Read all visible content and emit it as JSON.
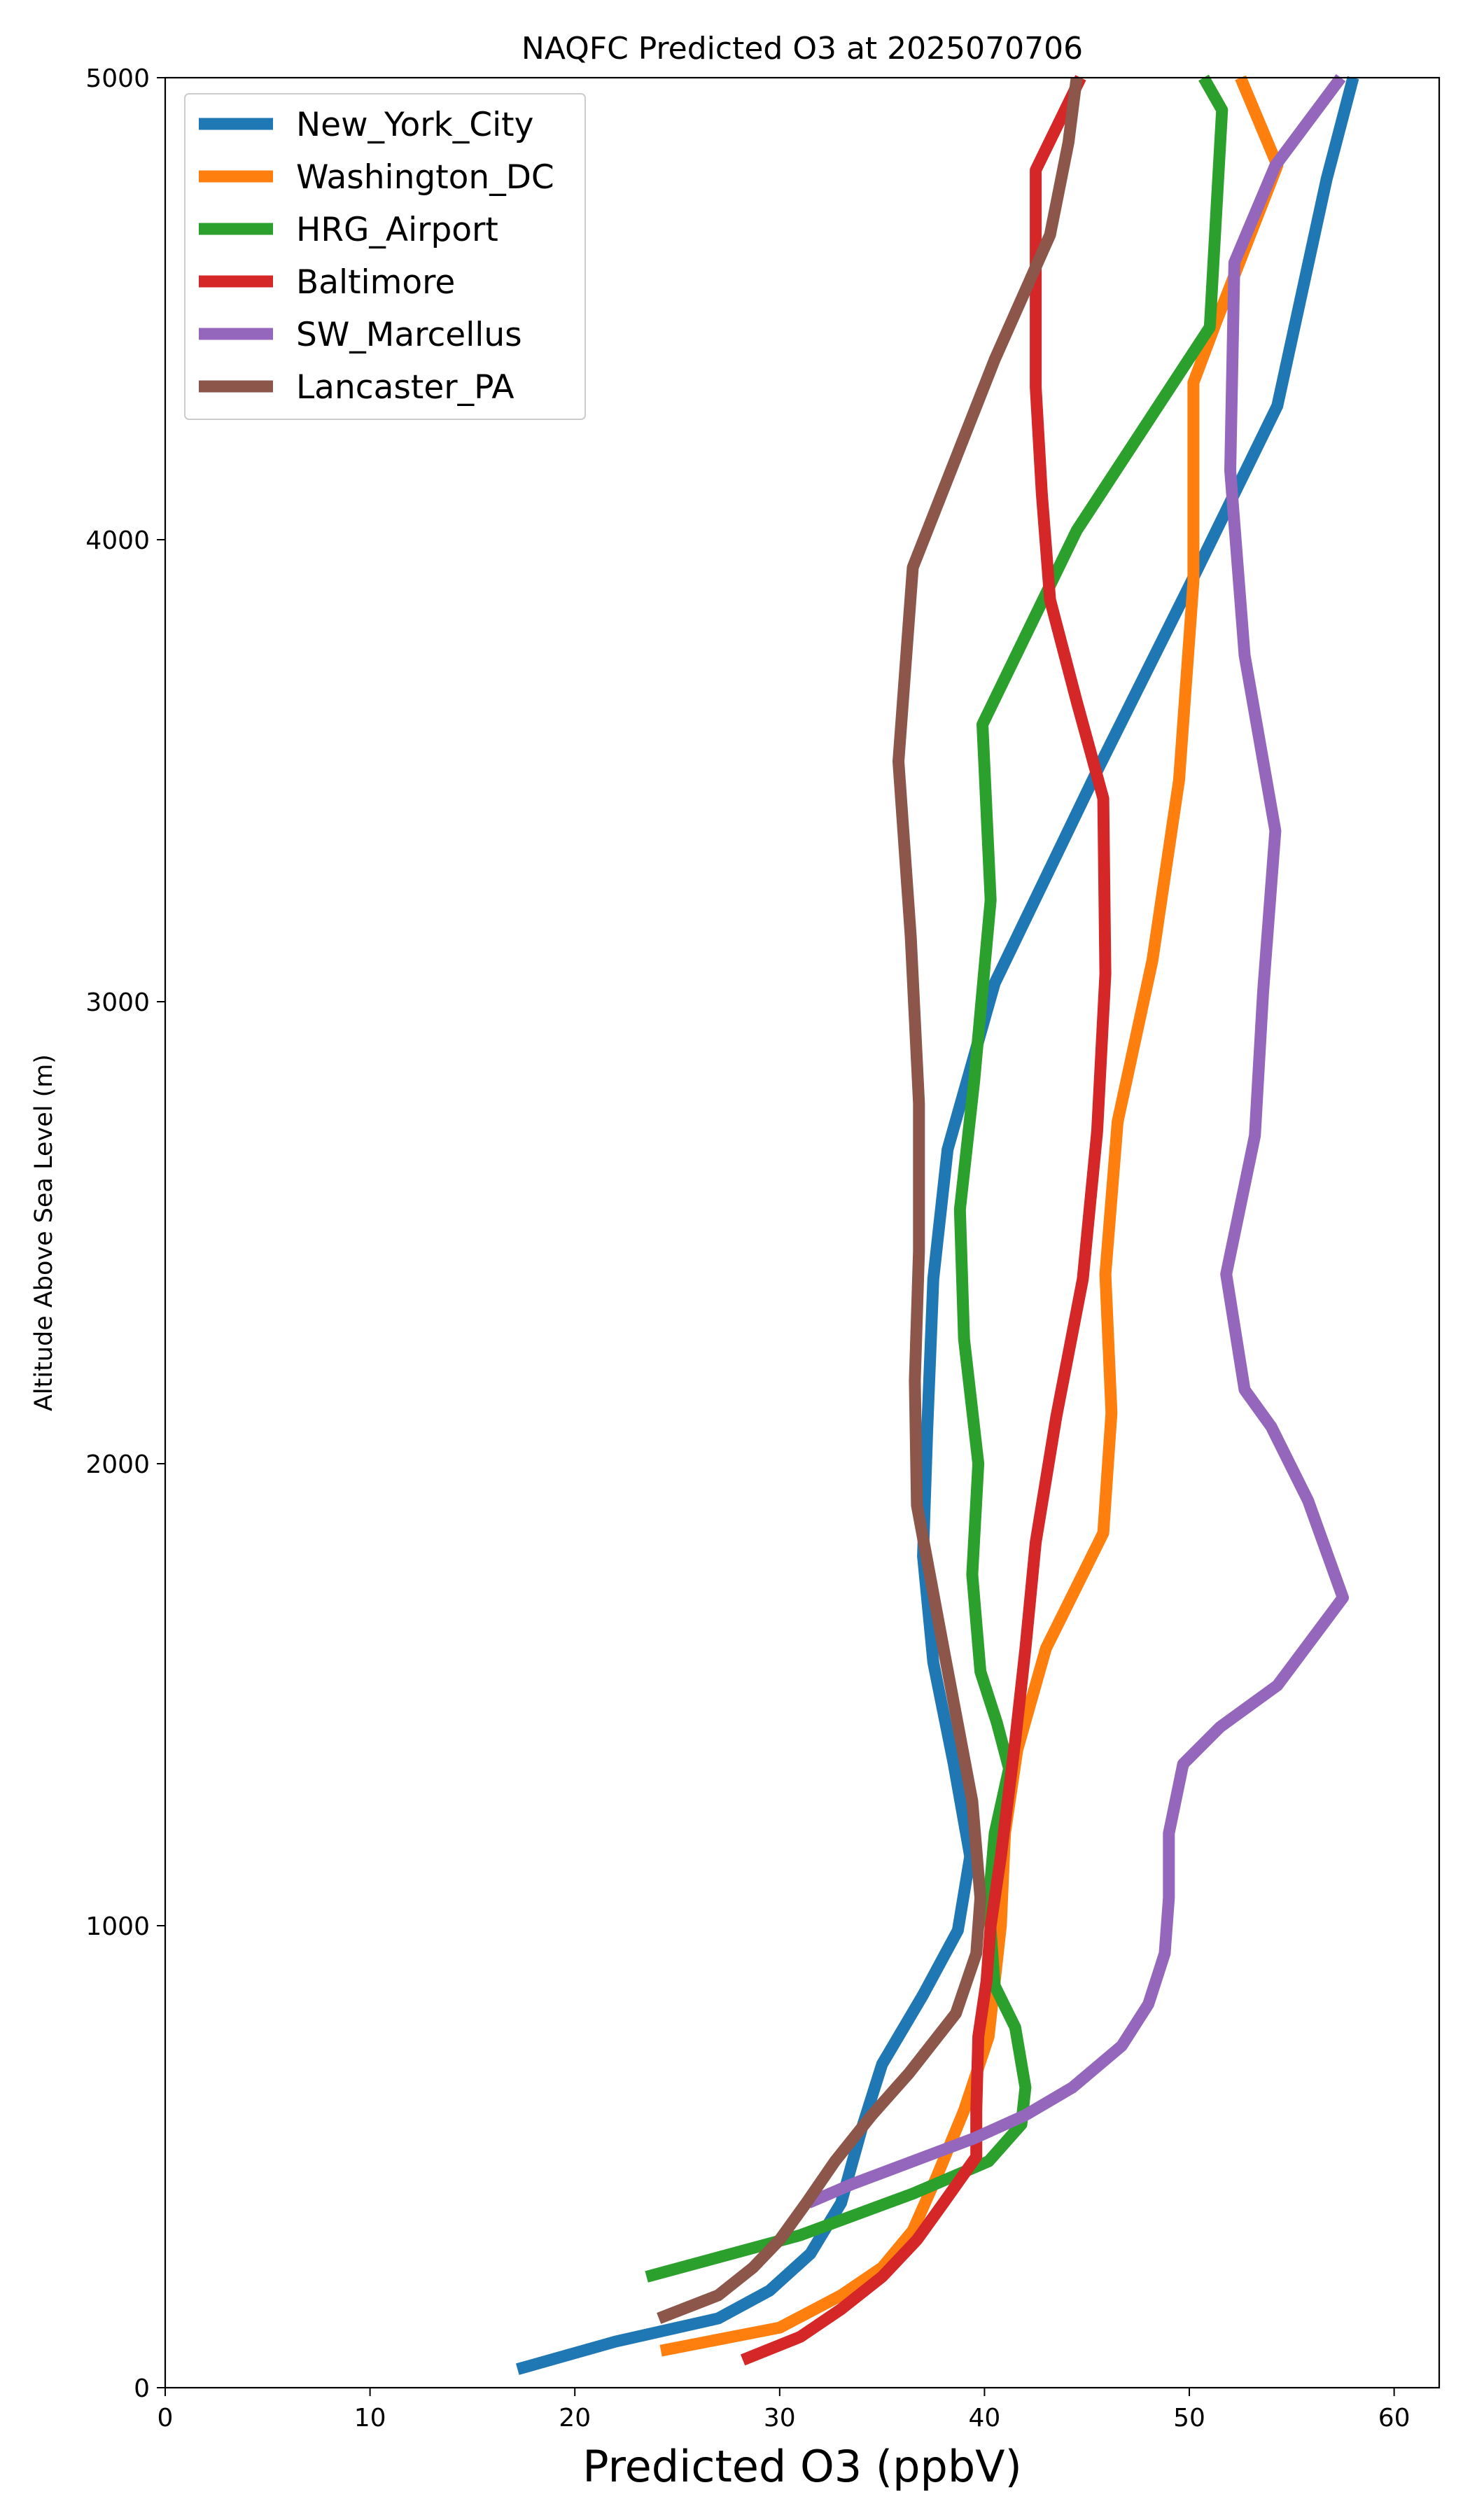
{
  "chart_data": {
    "type": "line",
    "title": "NAQFC Predicted O3 at 2025070706",
    "xlabel": "Predicted O3 (ppbV)",
    "ylabel": "Altitude Above Sea Level (m)",
    "xlim": [
      0,
      62.2
    ],
    "ylim": [
      0,
      5000
    ],
    "xticks": [
      0,
      10,
      20,
      30,
      40,
      50,
      60
    ],
    "yticks": [
      0,
      1000,
      2000,
      3000,
      4000,
      5000
    ],
    "grid": false,
    "legend_position": "upper-left",
    "series": [
      {
        "name": "New_York_City",
        "color": "#1f77b4",
        "points": [
          [
            17.2,
            40
          ],
          [
            22,
            100
          ],
          [
            27,
            150
          ],
          [
            29.5,
            210
          ],
          [
            31.5,
            290
          ],
          [
            33,
            400
          ],
          [
            34,
            560
          ],
          [
            35,
            700
          ],
          [
            37,
            850
          ],
          [
            38.7,
            990
          ],
          [
            39.3,
            1150
          ],
          [
            38.5,
            1350
          ],
          [
            37.5,
            1570
          ],
          [
            37,
            1800
          ],
          [
            37.2,
            2070
          ],
          [
            37.5,
            2400
          ],
          [
            38.2,
            2680
          ],
          [
            40.5,
            3040
          ],
          [
            45.5,
            3500
          ],
          [
            50,
            3900
          ],
          [
            54.3,
            4290
          ],
          [
            56.7,
            4780
          ],
          [
            58,
            5000
          ]
        ]
      },
      {
        "name": "Washington_DC",
        "color": "#ff7f0e",
        "points": [
          [
            24.2,
            80
          ],
          [
            30,
            130
          ],
          [
            33,
            200
          ],
          [
            35,
            260
          ],
          [
            36.5,
            340
          ],
          [
            37.7,
            460
          ],
          [
            39,
            600
          ],
          [
            40.2,
            760
          ],
          [
            40.8,
            1000
          ],
          [
            41,
            1200
          ],
          [
            41.6,
            1380
          ],
          [
            43,
            1600
          ],
          [
            45.8,
            1850
          ],
          [
            46.2,
            2110
          ],
          [
            45.9,
            2410
          ],
          [
            46.5,
            2740
          ],
          [
            48.2,
            3090
          ],
          [
            49.5,
            3480
          ],
          [
            50.2,
            3910
          ],
          [
            50.2,
            4340
          ],
          [
            51.3,
            4470
          ],
          [
            54.3,
            4810
          ],
          [
            52.5,
            5000
          ]
        ]
      },
      {
        "name": "HRG_Airport",
        "color": "#2ca02c",
        "points": [
          [
            23.5,
            240
          ],
          [
            31,
            330
          ],
          [
            36.5,
            420
          ],
          [
            40.2,
            490
          ],
          [
            41.8,
            570
          ],
          [
            42,
            650
          ],
          [
            41.5,
            780
          ],
          [
            40.5,
            870
          ],
          [
            40.2,
            1050
          ],
          [
            40.5,
            1200
          ],
          [
            41.2,
            1340
          ],
          [
            40.6,
            1440
          ],
          [
            39.8,
            1550
          ],
          [
            39.4,
            1760
          ],
          [
            39.7,
            2000
          ],
          [
            39,
            2270
          ],
          [
            38.8,
            2550
          ],
          [
            39.5,
            2830
          ],
          [
            40.3,
            3220
          ],
          [
            39.9,
            3600
          ],
          [
            44.5,
            4020
          ],
          [
            51,
            4460
          ],
          [
            51.6,
            4930
          ],
          [
            50.7,
            5000
          ]
        ]
      },
      {
        "name": "Baltimore",
        "color": "#d62728",
        "points": [
          [
            28.2,
            60
          ],
          [
            31,
            110
          ],
          [
            33,
            170
          ],
          [
            35,
            240
          ],
          [
            36.7,
            320
          ],
          [
            38,
            400
          ],
          [
            39.6,
            500
          ],
          [
            39.6,
            600
          ],
          [
            39.7,
            760
          ],
          [
            40.1,
            880
          ],
          [
            40.3,
            1000
          ],
          [
            40.8,
            1150
          ],
          [
            41.5,
            1400
          ],
          [
            42,
            1600
          ],
          [
            42.5,
            1830
          ],
          [
            43.5,
            2100
          ],
          [
            44.8,
            2400
          ],
          [
            45.5,
            2720
          ],
          [
            45.9,
            3060
          ],
          [
            45.8,
            3440
          ],
          [
            44.5,
            3650
          ],
          [
            43.2,
            3870
          ],
          [
            42.8,
            4100
          ],
          [
            42.5,
            4330
          ],
          [
            42.5,
            4560
          ],
          [
            42.5,
            4800
          ],
          [
            44.7,
            5000
          ]
        ]
      },
      {
        "name": "SW_Marcellus",
        "color": "#9467bd",
        "points": [
          [
            31.4,
            400
          ],
          [
            33.5,
            440
          ],
          [
            36.5,
            490
          ],
          [
            39.5,
            540
          ],
          [
            42,
            590
          ],
          [
            44.3,
            650
          ],
          [
            46.7,
            740
          ],
          [
            48,
            830
          ],
          [
            48.8,
            940
          ],
          [
            49,
            1060
          ],
          [
            49,
            1200
          ],
          [
            49.7,
            1350
          ],
          [
            51.5,
            1430
          ],
          [
            54.3,
            1520
          ],
          [
            57.5,
            1710
          ],
          [
            55.8,
            1920
          ],
          [
            54,
            2080
          ],
          [
            52.7,
            2160
          ],
          [
            51.8,
            2410
          ],
          [
            53.2,
            2710
          ],
          [
            53.6,
            3020
          ],
          [
            54.2,
            3370
          ],
          [
            52.7,
            3750
          ],
          [
            52,
            4150
          ],
          [
            52.2,
            4600
          ],
          [
            54.2,
            4810
          ],
          [
            57.4,
            5000
          ]
        ]
      },
      {
        "name": "Lancaster_PA",
        "color": "#8c564b",
        "points": [
          [
            24.1,
            150
          ],
          [
            27,
            200
          ],
          [
            28.7,
            260
          ],
          [
            30,
            320
          ],
          [
            31.3,
            400
          ],
          [
            32.7,
            490
          ],
          [
            34.5,
            590
          ],
          [
            36.3,
            680
          ],
          [
            38.6,
            810
          ],
          [
            39.6,
            940
          ],
          [
            39.8,
            1060
          ],
          [
            39.4,
            1270
          ],
          [
            38,
            1600
          ],
          [
            36.7,
            1910
          ],
          [
            36.6,
            2180
          ],
          [
            36.8,
            2460
          ],
          [
            36.8,
            2780
          ],
          [
            36.4,
            3140
          ],
          [
            35.8,
            3520
          ],
          [
            36.5,
            3940
          ],
          [
            40.5,
            4390
          ],
          [
            43.2,
            4660
          ],
          [
            44.1,
            4860
          ],
          [
            44.5,
            5000
          ]
        ]
      }
    ]
  }
}
